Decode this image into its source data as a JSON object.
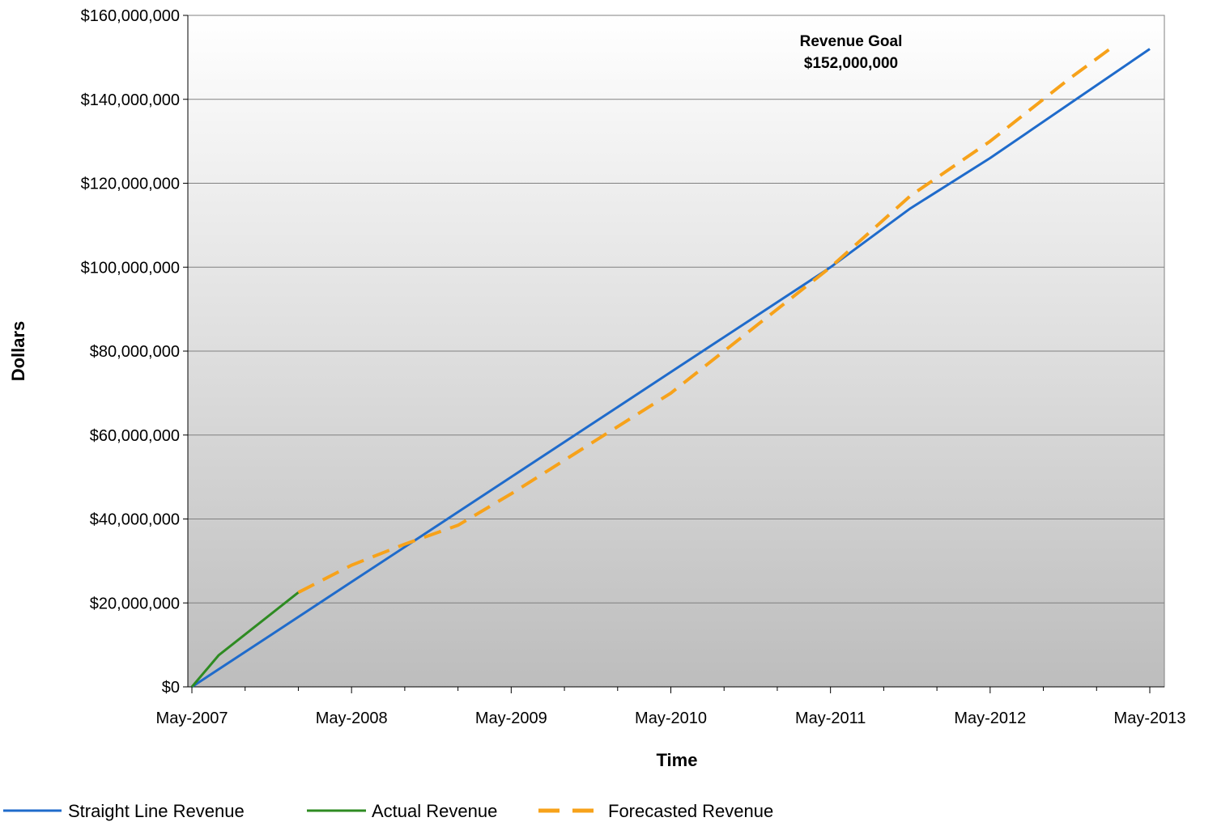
{
  "chart_data": {
    "type": "line",
    "title": "",
    "xlabel": "Time",
    "ylabel": "Dollars",
    "x_ticks": [
      "May-2007",
      "May-2008",
      "May-2009",
      "May-2010",
      "May-2011",
      "May-2012",
      "May-2013"
    ],
    "y_ticks": [
      "$0",
      "$20,000,000",
      "$40,000,000",
      "$60,000,000",
      "$80,000,000",
      "$100,000,000",
      "$120,000,000",
      "$140,000,000",
      "$160,000,000"
    ],
    "ylim": [
      0,
      160000000
    ],
    "xlim": [
      "2007-05",
      "2013-05"
    ],
    "grid": "horizontal",
    "legend": "bottom",
    "annotation": {
      "line1": "Revenue Goal",
      "line2": "$152,000,000",
      "anchor": {
        "x": "2011-10",
        "y": 152000000
      }
    },
    "series": [
      {
        "name": "Straight Line Revenue",
        "color": "#1F6BCB",
        "style": "solid",
        "points": [
          [
            "2007-05",
            0
          ],
          [
            "2007-11",
            12500000
          ],
          [
            "2008-05",
            25000000
          ],
          [
            "2008-11",
            37500000
          ],
          [
            "2009-05",
            50000000
          ],
          [
            "2009-11",
            62500000
          ],
          [
            "2010-05",
            75000000
          ],
          [
            "2010-11",
            87500000
          ],
          [
            "2011-05",
            100000000
          ],
          [
            "2011-11",
            114000000
          ],
          [
            "2012-05",
            126000000
          ],
          [
            "2012-11",
            139000000
          ],
          [
            "2013-05",
            152000000
          ]
        ]
      },
      {
        "name": "Actual Revenue",
        "color": "#2E8B22",
        "style": "solid",
        "points": [
          [
            "2007-05",
            0
          ],
          [
            "2007-07",
            7500000
          ],
          [
            "2007-10",
            15000000
          ],
          [
            "2008-01",
            22500000
          ]
        ]
      },
      {
        "name": "Forecasted Revenue",
        "color": "#F7A21A",
        "style": "dashed",
        "points": [
          [
            "2008-01",
            22500000
          ],
          [
            "2008-05",
            29000000
          ],
          [
            "2008-09",
            34000000
          ],
          [
            "2009-01",
            38500000
          ],
          [
            "2009-05",
            46000000
          ],
          [
            "2009-11",
            58000000
          ],
          [
            "2010-05",
            70000000
          ],
          [
            "2010-11",
            85000000
          ],
          [
            "2011-05",
            100000000
          ],
          [
            "2011-11",
            117000000
          ],
          [
            "2012-05",
            130000000
          ],
          [
            "2012-11",
            145000000
          ],
          [
            "2013-02",
            152000000
          ]
        ]
      }
    ]
  }
}
